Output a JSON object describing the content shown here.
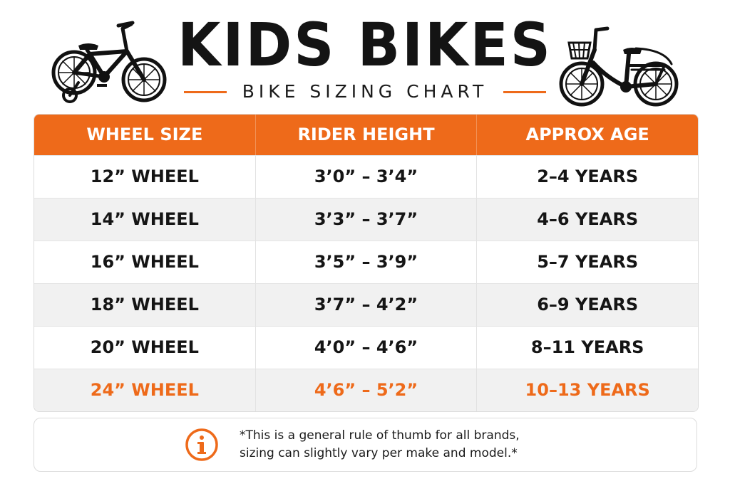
{
  "header": {
    "title": "KIDS BIKES",
    "subtitle": "BIKE SIZING CHART"
  },
  "icons": {
    "left": "kids-bike-with-training-wheels-icon",
    "right": "kids-bike-with-basket-icon",
    "note": "info-icon"
  },
  "colors": {
    "accent": "#ee6a1a",
    "text": "#151515",
    "row_alt": "#f1f1f1"
  },
  "table": {
    "columns": [
      "WHEEL SIZE",
      "RIDER HEIGHT",
      "APPROX AGE"
    ],
    "rows": [
      {
        "wheel": "12” WHEEL",
        "height": "3’0” – 3’4”",
        "age": "2–4 YEARS"
      },
      {
        "wheel": "14” WHEEL",
        "height": "3’3” – 3’7”",
        "age": "4–6 YEARS"
      },
      {
        "wheel": "16” WHEEL",
        "height": "3’5” – 3’9”",
        "age": "5–7 YEARS"
      },
      {
        "wheel": "18” WHEEL",
        "height": "3’7” – 4’2”",
        "age": "6–9 YEARS"
      },
      {
        "wheel": "20” WHEEL",
        "height": "4’0” – 4’6”",
        "age": "8–11 YEARS"
      },
      {
        "wheel": "24” WHEEL",
        "height": "4’6” – 5’2”",
        "age": "10–13 YEARS"
      }
    ]
  },
  "note": {
    "line1": "*This is a general rule of thumb for all brands,",
    "line2": "sizing can slightly vary per make and model.*"
  }
}
